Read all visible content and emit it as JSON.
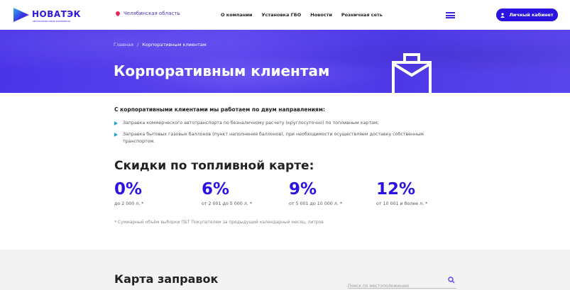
{
  "header": {
    "logo_text": "НОВАТЭК",
    "logo_sub": "АВТОЗАПРАВОЧНЫЕ КОМПЛЕКСЫ",
    "region": "Челябинская область",
    "nav": [
      "О компании",
      "Установка ГБО",
      "Новости",
      "Розничная сеть"
    ],
    "cabinet_label": "Личный кабинет"
  },
  "hero": {
    "breadcrumbs": [
      "Главная",
      "Корпоративным клиентам"
    ],
    "separator": "/",
    "title": "Корпоративным клиентам"
  },
  "intro": {
    "lead": "С корпоративными клиентами мы работаем по двум направлениям:",
    "items": [
      "Заправка коммерческого автотранспорта по безналичному расчету (круглосуточно) по топливным картам;",
      "Заправка бытовых газовых баллонов (пункт наполнения баллонов), при необходимости осуществляем доставку собственным транспортом."
    ]
  },
  "discounts": {
    "title": "Скидки по топливной карте:",
    "items": [
      {
        "value": "0%",
        "label": "до 2 000 л. *"
      },
      {
        "value": "6%",
        "label": "от 2 001 до 5 000 л. *"
      },
      {
        "value": "9%",
        "label": "от 5 001 до 10 000 л. *"
      },
      {
        "value": "12%",
        "label": "от 10 001 и более л. *"
      }
    ],
    "note": "* Суммарный объём выборки ПБТ Покупателем за предыдущий календарный месяц, литров"
  },
  "map": {
    "title": "Карта заправок",
    "search_placeholder": "Поиск по местоположению"
  },
  "colors": {
    "accent": "#2a12e0",
    "hero": "#4b34e8",
    "bullet": "#1aa7e8"
  }
}
